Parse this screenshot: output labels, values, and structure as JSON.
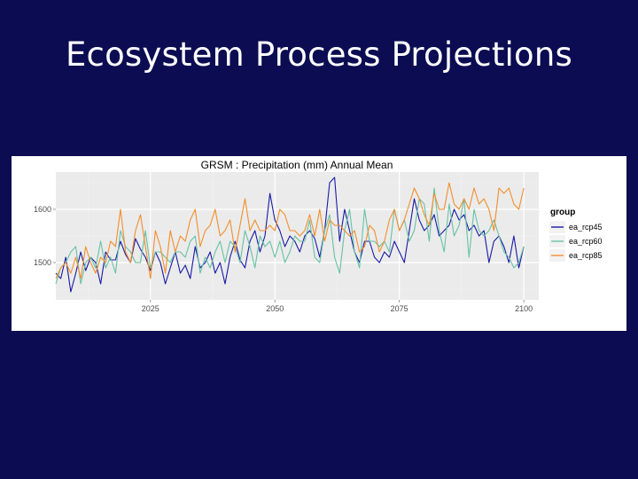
{
  "slide": {
    "title": "Ecosystem Process Projections"
  },
  "chart_data": {
    "type": "line",
    "title": "GRSM :  Precipitation (mm) Annual Mean",
    "xlabel": "",
    "ylabel": "",
    "xlim": [
      2006,
      2103
    ],
    "ylim": [
      1430,
      1670
    ],
    "xticks": [
      2025,
      2050,
      2075,
      2100
    ],
    "yticks": [
      1500,
      1600
    ],
    "grid": true,
    "panel_background": "#ebebeb",
    "legend": {
      "title": "group",
      "position": "right"
    },
    "x": [
      2006,
      2007,
      2008,
      2009,
      2010,
      2011,
      2012,
      2013,
      2014,
      2015,
      2016,
      2017,
      2018,
      2019,
      2020,
      2021,
      2022,
      2023,
      2024,
      2025,
      2026,
      2027,
      2028,
      2029,
      2030,
      2031,
      2032,
      2033,
      2034,
      2035,
      2036,
      2037,
      2038,
      2039,
      2040,
      2041,
      2042,
      2043,
      2044,
      2045,
      2046,
      2047,
      2048,
      2049,
      2050,
      2051,
      2052,
      2053,
      2054,
      2055,
      2056,
      2057,
      2058,
      2059,
      2060,
      2061,
      2062,
      2063,
      2064,
      2065,
      2066,
      2067,
      2068,
      2069,
      2070,
      2071,
      2072,
      2073,
      2074,
      2075,
      2076,
      2077,
      2078,
      2079,
      2080,
      2081,
      2082,
      2083,
      2084,
      2085,
      2086,
      2087,
      2088,
      2089,
      2090,
      2091,
      2092,
      2093,
      2094,
      2095,
      2096,
      2097,
      2098,
      2099,
      2100
    ],
    "series": [
      {
        "name": "ea_rcp45",
        "color": "#1a1aa6",
        "values": [
          1480,
          1470,
          1510,
          1445,
          1480,
          1520,
          1485,
          1510,
          1500,
          1460,
          1520,
          1505,
          1505,
          1540,
          1515,
          1500,
          1545,
          1525,
          1510,
          1485,
          1520,
          1500,
          1460,
          1490,
          1520,
          1480,
          1495,
          1470,
          1530,
          1490,
          1500,
          1520,
          1480,
          1500,
          1460,
          1510,
          1540,
          1505,
          1490,
          1540,
          1560,
          1520,
          1550,
          1630,
          1580,
          1560,
          1530,
          1550,
          1540,
          1520,
          1550,
          1560,
          1545,
          1510,
          1560,
          1650,
          1660,
          1540,
          1600,
          1560,
          1520,
          1500,
          1540,
          1540,
          1510,
          1500,
          1520,
          1510,
          1540,
          1520,
          1500,
          1560,
          1620,
          1580,
          1560,
          1570,
          1590,
          1550,
          1560,
          1570,
          1600,
          1580,
          1590,
          1560,
          1570,
          1550,
          1560,
          1500,
          1540,
          1550,
          1530,
          1500,
          1550,
          1490,
          1530
        ]
      },
      {
        "name": "ea_rcp60",
        "color": "#66c2a5",
        "values": [
          1460,
          1490,
          1500,
          1520,
          1530,
          1460,
          1500,
          1510,
          1490,
          1540,
          1490,
          1510,
          1480,
          1560,
          1530,
          1520,
          1500,
          1500,
          1560,
          1490,
          1520,
          1520,
          1510,
          1500,
          1520,
          1520,
          1510,
          1540,
          1550,
          1480,
          1510,
          1490,
          1520,
          1540,
          1500,
          1540,
          1530,
          1500,
          1560,
          1530,
          1490,
          1550,
          1530,
          1540,
          1510,
          1540,
          1500,
          1520,
          1550,
          1540,
          1540,
          1580,
          1510,
          1500,
          1560,
          1590,
          1510,
          1480,
          1560,
          1600,
          1520,
          1490,
          1600,
          1540,
          1540,
          1530,
          1540,
          1520,
          1600,
          1560,
          1580,
          1540,
          1560,
          1620,
          1610,
          1540,
          1640,
          1560,
          1520,
          1610,
          1550,
          1570,
          1620,
          1510,
          1600,
          1560,
          1550,
          1560,
          1580,
          1550,
          1520,
          1510,
          1490,
          1500,
          1530
        ]
      },
      {
        "name": "ea_rcp85",
        "color": "#f28e2b",
        "values": [
          1470,
          1490,
          1500,
          1480,
          1510,
          1470,
          1530,
          1500,
          1480,
          1510,
          1500,
          1540,
          1530,
          1600,
          1520,
          1500,
          1560,
          1590,
          1530,
          1470,
          1560,
          1530,
          1480,
          1560,
          1520,
          1550,
          1540,
          1580,
          1600,
          1530,
          1560,
          1570,
          1600,
          1550,
          1560,
          1580,
          1520,
          1570,
          1620,
          1560,
          1580,
          1560,
          1560,
          1570,
          1560,
          1600,
          1590,
          1560,
          1560,
          1550,
          1560,
          1590,
          1550,
          1600,
          1540,
          1580,
          1570,
          1570,
          1560,
          1550,
          1560,
          1520,
          1530,
          1570,
          1560,
          1520,
          1540,
          1580,
          1600,
          1560,
          1580,
          1610,
          1640,
          1620,
          1590,
          1570,
          1630,
          1600,
          1600,
          1650,
          1610,
          1600,
          1620,
          1600,
          1640,
          1610,
          1620,
          1600,
          1560,
          1640,
          1630,
          1640,
          1610,
          1600,
          1640
        ]
      }
    ]
  }
}
